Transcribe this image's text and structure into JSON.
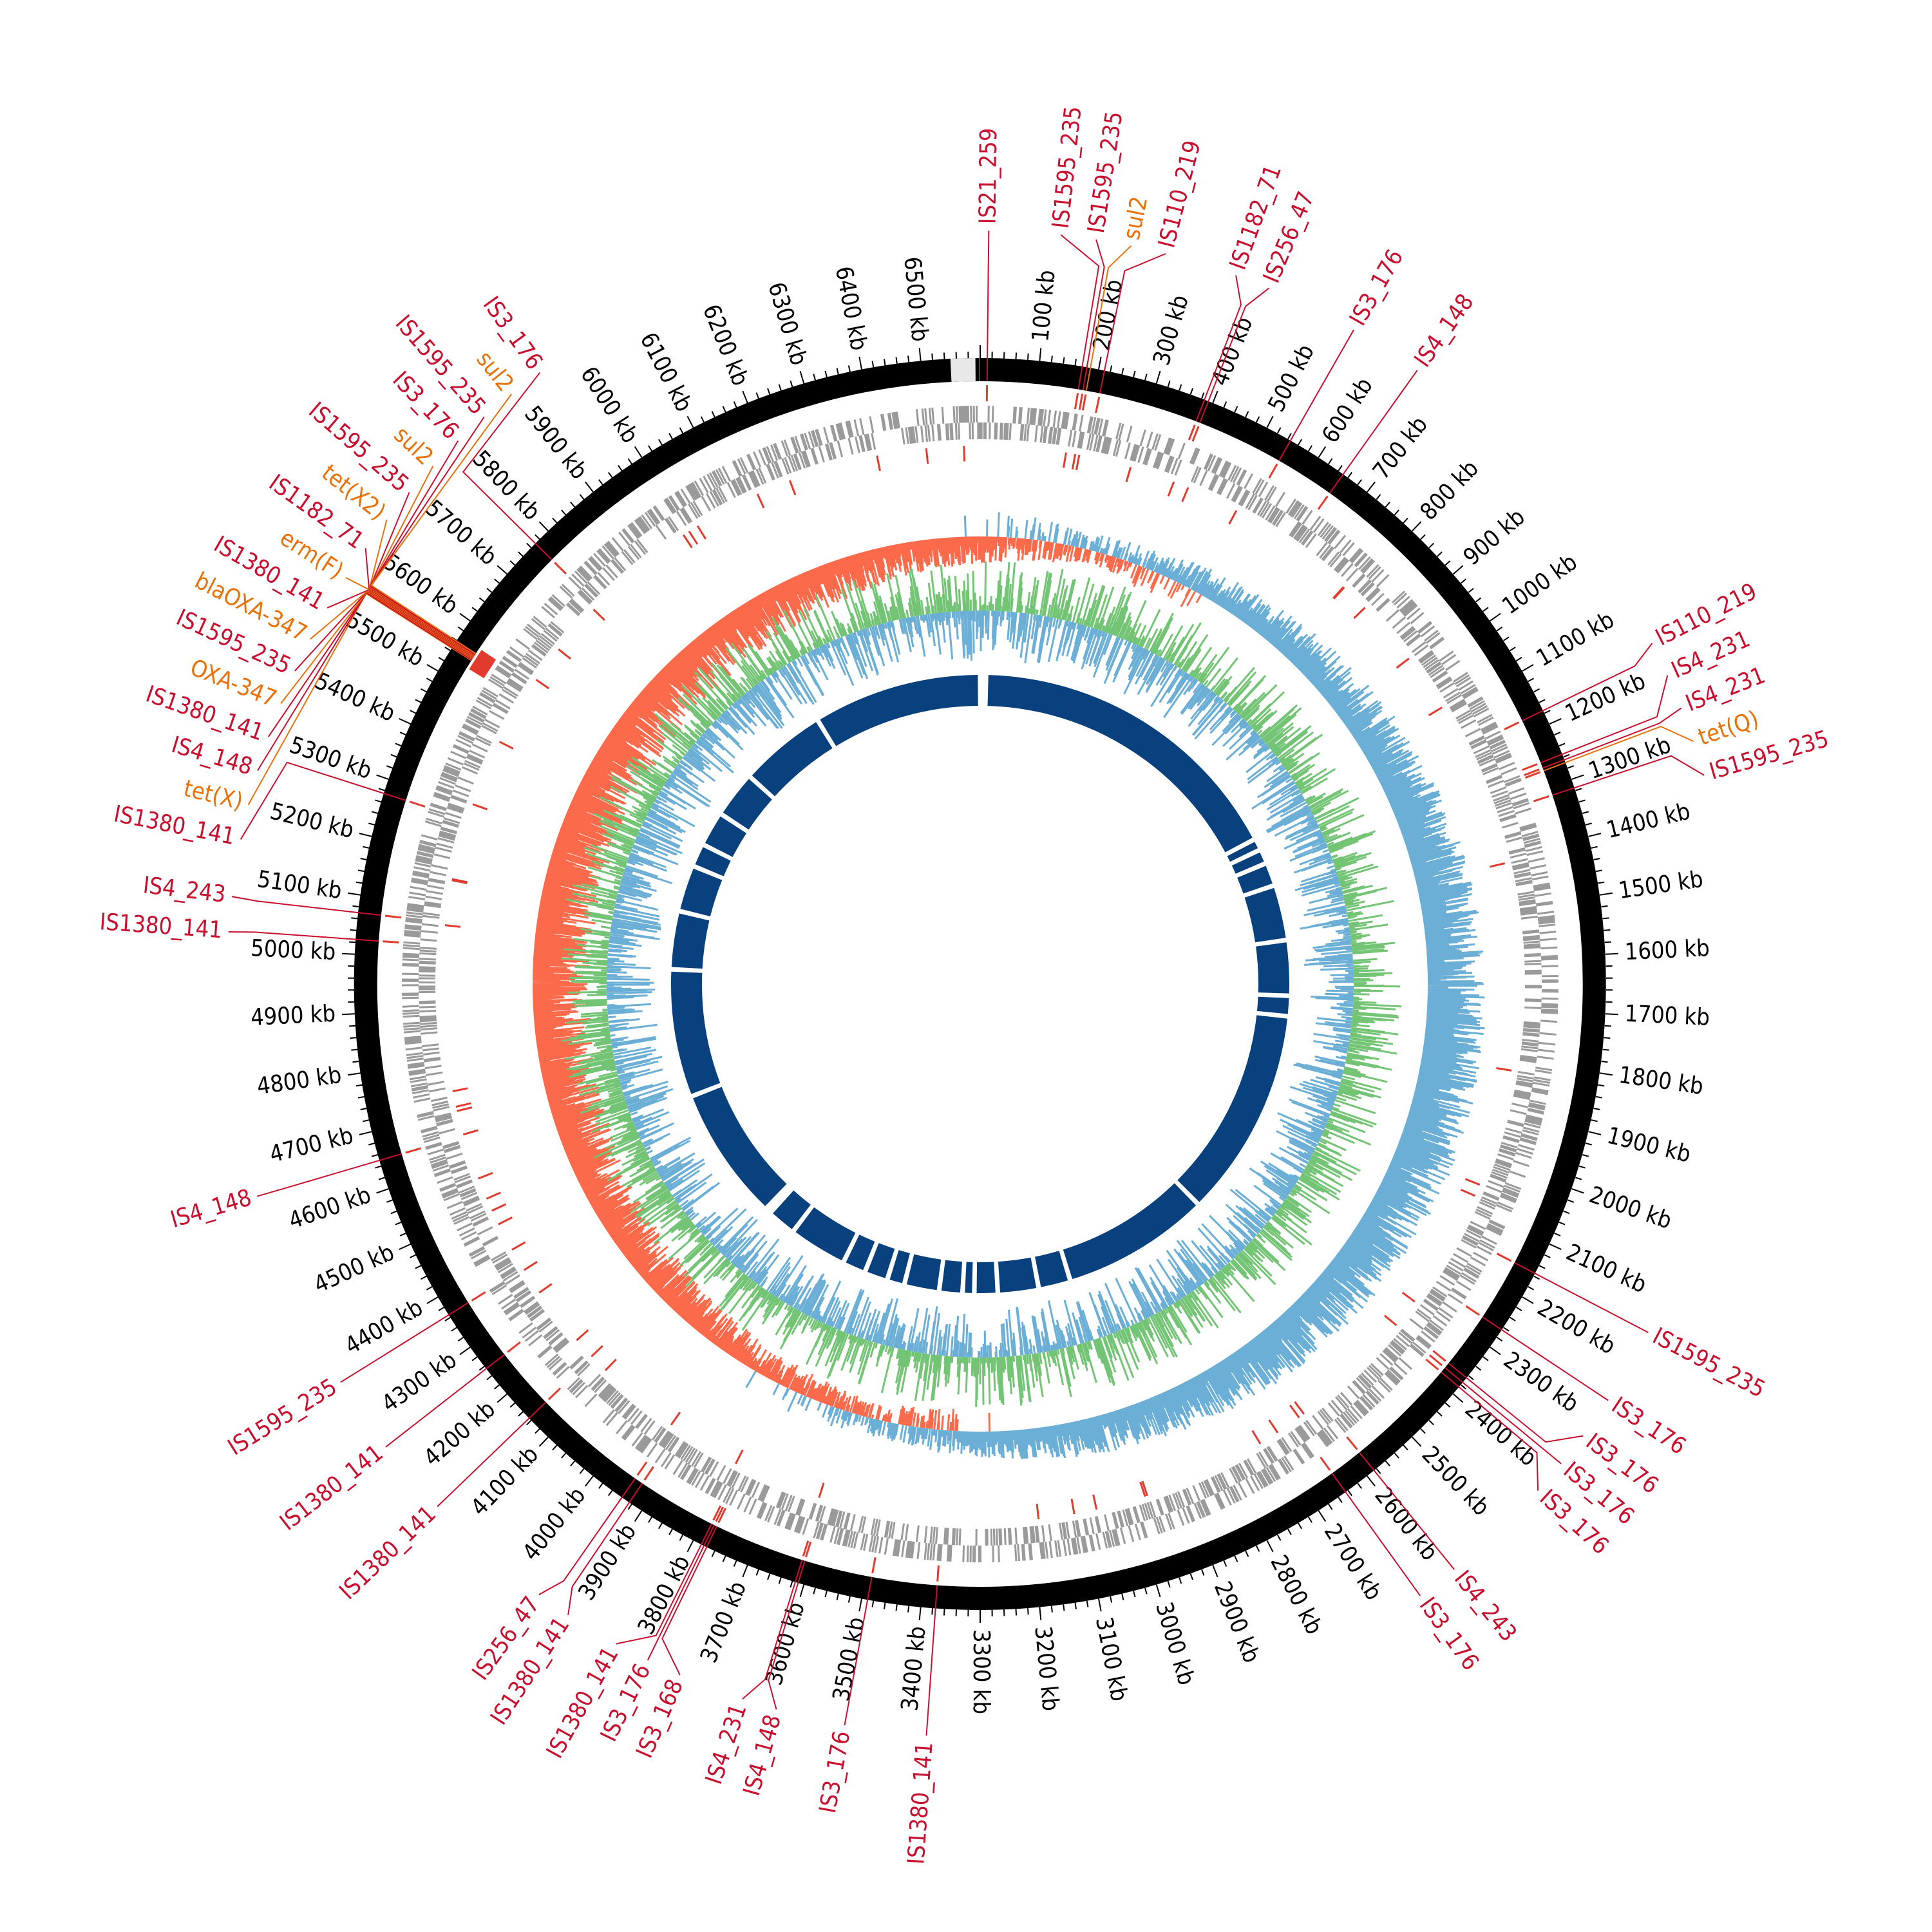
{
  "chart_data": {
    "type": "circular-genome-map",
    "genome_length_kb": 6600,
    "tick_interval_kb": 100,
    "tick_unit": "kb",
    "colors": {
      "backbone": "#000000",
      "gap_block": "#e8e8e8",
      "cds_track": "#9a9a9a",
      "feature_marks": "#e23b2e",
      "gc_skew_positive": "#6baed6",
      "gc_skew_negative": "#fb6a4a",
      "gc_content_high": "#74c476",
      "gc_content_low": "#6baed6",
      "contig_blocks": "#08417d",
      "is_label": "#c8102e",
      "resistance_label": "#e8710a"
    },
    "contig_gaps_kb": [
      20,
      1140,
      1180,
      1230,
      1310,
      1500,
      1690,
      1760,
      2480,
      2990,
      3100,
      3240,
      3320,
      3360,
      3440,
      3560,
      3620,
      3700,
      3780,
      3980,
      4080,
      4100,
      4560,
      5000,
      5200,
      5360,
      5440,
      5560,
      5720,
      6020
    ],
    "annotations": [
      {
        "label": "IS21_259",
        "kb": 12,
        "type": "is"
      },
      {
        "label": "IS1595_235",
        "kb": 172,
        "type": "is"
      },
      {
        "label": "IS1595_235",
        "kb": 180,
        "type": "is"
      },
      {
        "label": "sul2",
        "kb": 186,
        "type": "resistance"
      },
      {
        "label": "IS110_219",
        "kb": 210,
        "type": "is"
      },
      {
        "label": "IS1182_71",
        "kb": 385,
        "type": "is"
      },
      {
        "label": "IS256_47",
        "kb": 392,
        "type": "is"
      },
      {
        "label": "IS3_176",
        "kb": 545,
        "type": "is"
      },
      {
        "label": "IS4_148",
        "kb": 650,
        "type": "is"
      },
      {
        "label": "IS110_219",
        "kb": 1175,
        "type": "is"
      },
      {
        "label": "IS4_231",
        "kb": 1255,
        "type": "is"
      },
      {
        "label": "IS4_231",
        "kb": 1265,
        "type": "is"
      },
      {
        "label": "tet(Q)",
        "kb": 1270,
        "type": "resistance"
      },
      {
        "label": "IS1595_235",
        "kb": 1315,
        "type": "is"
      },
      {
        "label": "IS1595_235",
        "kb": 2155,
        "type": "is"
      },
      {
        "label": "IS3_176",
        "kb": 2265,
        "type": "is"
      },
      {
        "label": "IS3_176",
        "kb": 2365,
        "type": "is"
      },
      {
        "label": "IS3_176",
        "kb": 2375,
        "type": "is"
      },
      {
        "label": "IS3_176",
        "kb": 2385,
        "type": "is"
      },
      {
        "label": "IS4_243",
        "kb": 2585,
        "type": "is"
      },
      {
        "label": "IS3_176",
        "kb": 2645,
        "type": "is"
      },
      {
        "label": "IS1380_141",
        "kb": 3375,
        "type": "is"
      },
      {
        "label": "IS3_176",
        "kb": 3490,
        "type": "is"
      },
      {
        "label": "IS4_148",
        "kb": 3610,
        "type": "is"
      },
      {
        "label": "IS4_231",
        "kb": 3615,
        "type": "is"
      },
      {
        "label": "IS3_168",
        "kb": 3775,
        "type": "is"
      },
      {
        "label": "IS3_176",
        "kb": 3780,
        "type": "is"
      },
      {
        "label": "IS1380_141",
        "kb": 3785,
        "type": "is"
      },
      {
        "label": "IS1380_141",
        "kb": 3925,
        "type": "is"
      },
      {
        "label": "IS256_47",
        "kb": 3940,
        "type": "is"
      },
      {
        "label": "IS1380_141",
        "kb": 4145,
        "type": "is"
      },
      {
        "label": "IS1380_141",
        "kb": 4255,
        "type": "is"
      },
      {
        "label": "IS1595_235",
        "kb": 4365,
        "type": "is"
      },
      {
        "label": "IS4_148",
        "kb": 4650,
        "type": "is"
      },
      {
        "label": "IS1380_141",
        "kb": 5025,
        "type": "is"
      },
      {
        "label": "IS4_243",
        "kb": 5070,
        "type": "is"
      },
      {
        "label": "IS1380_141",
        "kb": 5275,
        "type": "is"
      },
      {
        "label": "tet(X)",
        "kb": 5545,
        "type": "resistance"
      },
      {
        "label": "IS4_148",
        "kb": 5546,
        "type": "is"
      },
      {
        "label": "IS1380_141",
        "kb": 5547,
        "type": "is"
      },
      {
        "label": "OXA-347",
        "kb": 5548,
        "type": "resistance"
      },
      {
        "label": "IS1595_235",
        "kb": 5549,
        "type": "is"
      },
      {
        "label": "blaOXA-347",
        "kb": 5550,
        "type": "resistance"
      },
      {
        "label": "IS1380_141",
        "kb": 5551,
        "type": "is"
      },
      {
        "label": "erm(F)",
        "kb": 5552,
        "type": "resistance"
      },
      {
        "label": "IS1182_71",
        "kb": 5553,
        "type": "is"
      },
      {
        "label": "tet(X2)",
        "kb": 5554,
        "type": "resistance"
      },
      {
        "label": "IS1595_235",
        "kb": 5555,
        "type": "is"
      },
      {
        "label": "sul2",
        "kb": 5556,
        "type": "resistance"
      },
      {
        "label": "IS3_176",
        "kb": 5557,
        "type": "is"
      },
      {
        "label": "IS1595_235",
        "kb": 5558,
        "type": "is"
      },
      {
        "label": "sul2",
        "kb": 5559,
        "type": "resistance"
      },
      {
        "label": "IS3_176",
        "kb": 5770,
        "type": "is"
      }
    ]
  }
}
